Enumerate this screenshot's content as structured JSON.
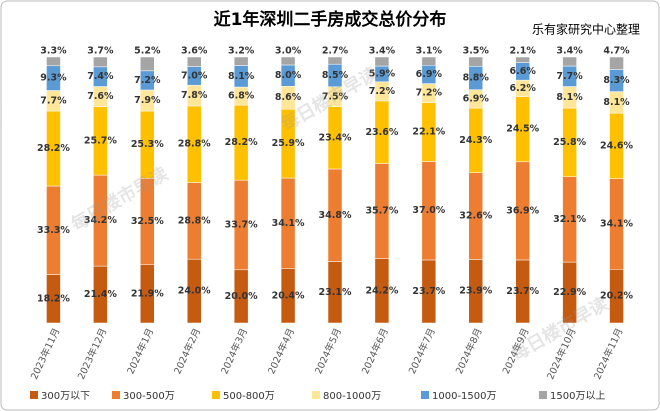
{
  "chart_data": {
    "type": "bar",
    "stacked": true,
    "title": "近1年深圳二手房成交总价分布",
    "subtitle": "乐有家研究中心整理",
    "watermark": "每日楼市早读",
    "categories": [
      "2023年11月",
      "2023年12月",
      "2024年1月",
      "2024年2月",
      "2024年3月",
      "2024年4月",
      "2024年5月",
      "2024年6月",
      "2024年7月",
      "2024年8月",
      "2024年9月",
      "2024年10月",
      "2024年11月"
    ],
    "series": [
      {
        "name": "300万以下",
        "color": "#c55a11",
        "values": [
          18.2,
          21.4,
          21.9,
          24.0,
          20.0,
          20.4,
          23.1,
          24.2,
          23.7,
          23.9,
          23.7,
          22.9,
          20.2
        ],
        "value_labels": [
          "18.2%",
          "21.4%",
          "21.9%",
          "24.0%",
          "20.0%",
          "20.4%",
          "23.1%",
          "24.2%",
          "23.7%",
          "23.9%",
          "23.7%",
          "22.9%",
          "20.2%"
        ]
      },
      {
        "name": "300-500万",
        "color": "#ed7d31",
        "values": [
          33.3,
          34.2,
          32.5,
          28.8,
          33.7,
          34.1,
          34.8,
          35.7,
          37.0,
          32.6,
          36.9,
          32.1,
          34.1
        ],
        "value_labels": [
          "33.3%",
          "34.2%",
          "32.5%",
          "28.8%",
          "33.7%",
          "34.1%",
          "34.8%",
          "35.7%",
          "37.0%",
          "32.6%",
          "36.9%",
          "32.1%",
          "34.1%"
        ]
      },
      {
        "name": "500-800万",
        "color": "#ffc000",
        "values": [
          28.2,
          25.7,
          25.3,
          28.8,
          28.2,
          25.9,
          23.4,
          23.6,
          22.1,
          24.3,
          24.5,
          25.8,
          24.6
        ],
        "value_labels": [
          "28.2%",
          "25.7%",
          "25.3%",
          "28.8%",
          "28.2%",
          "25.9%",
          "23.4%",
          "23.6%",
          "22.1%",
          "24.3%",
          "24.5%",
          "25.8%",
          "24.6%"
        ]
      },
      {
        "name": "800-1000万",
        "color": "#ffe699",
        "values": [
          7.7,
          7.6,
          7.9,
          7.8,
          6.8,
          8.6,
          7.5,
          7.2,
          7.2,
          6.9,
          6.2,
          8.1,
          8.1
        ],
        "value_labels": [
          "7.7%",
          "7.6%",
          "7.9%",
          "7.8%",
          "6.8%",
          "8.6%",
          "7.5%",
          "7.2%",
          "7.2%",
          "6.9%",
          "6.2%",
          "8.1%",
          "8.1%"
        ]
      },
      {
        "name": "1000-1500万",
        "color": "#5b9bd5",
        "values": [
          9.3,
          7.4,
          7.2,
          7.0,
          8.1,
          8.0,
          8.5,
          5.9,
          6.9,
          8.8,
          6.6,
          7.7,
          8.3
        ],
        "value_labels": [
          "9.3%",
          "7.4%",
          "7.2%",
          "7.0%",
          "8.1%",
          "8.0%",
          "8.5%",
          "5.9%",
          "6.9%",
          "8.8%",
          "6.6%",
          "7.7%",
          "8.3%"
        ]
      },
      {
        "name": "1500万以上",
        "color": "#a5a5a5",
        "values": [
          3.3,
          3.7,
          5.2,
          3.6,
          3.2,
          3.0,
          2.7,
          3.4,
          3.1,
          3.5,
          2.1,
          3.4,
          4.7
        ],
        "value_labels": [
          "3.3%",
          "3.7%",
          "5.2%",
          "3.6%",
          "3.2%",
          "3.0%",
          "2.7%",
          "3.4%",
          "3.1%",
          "3.5%",
          "2.1%",
          "3.4%",
          "4.7%"
        ]
      }
    ]
  }
}
